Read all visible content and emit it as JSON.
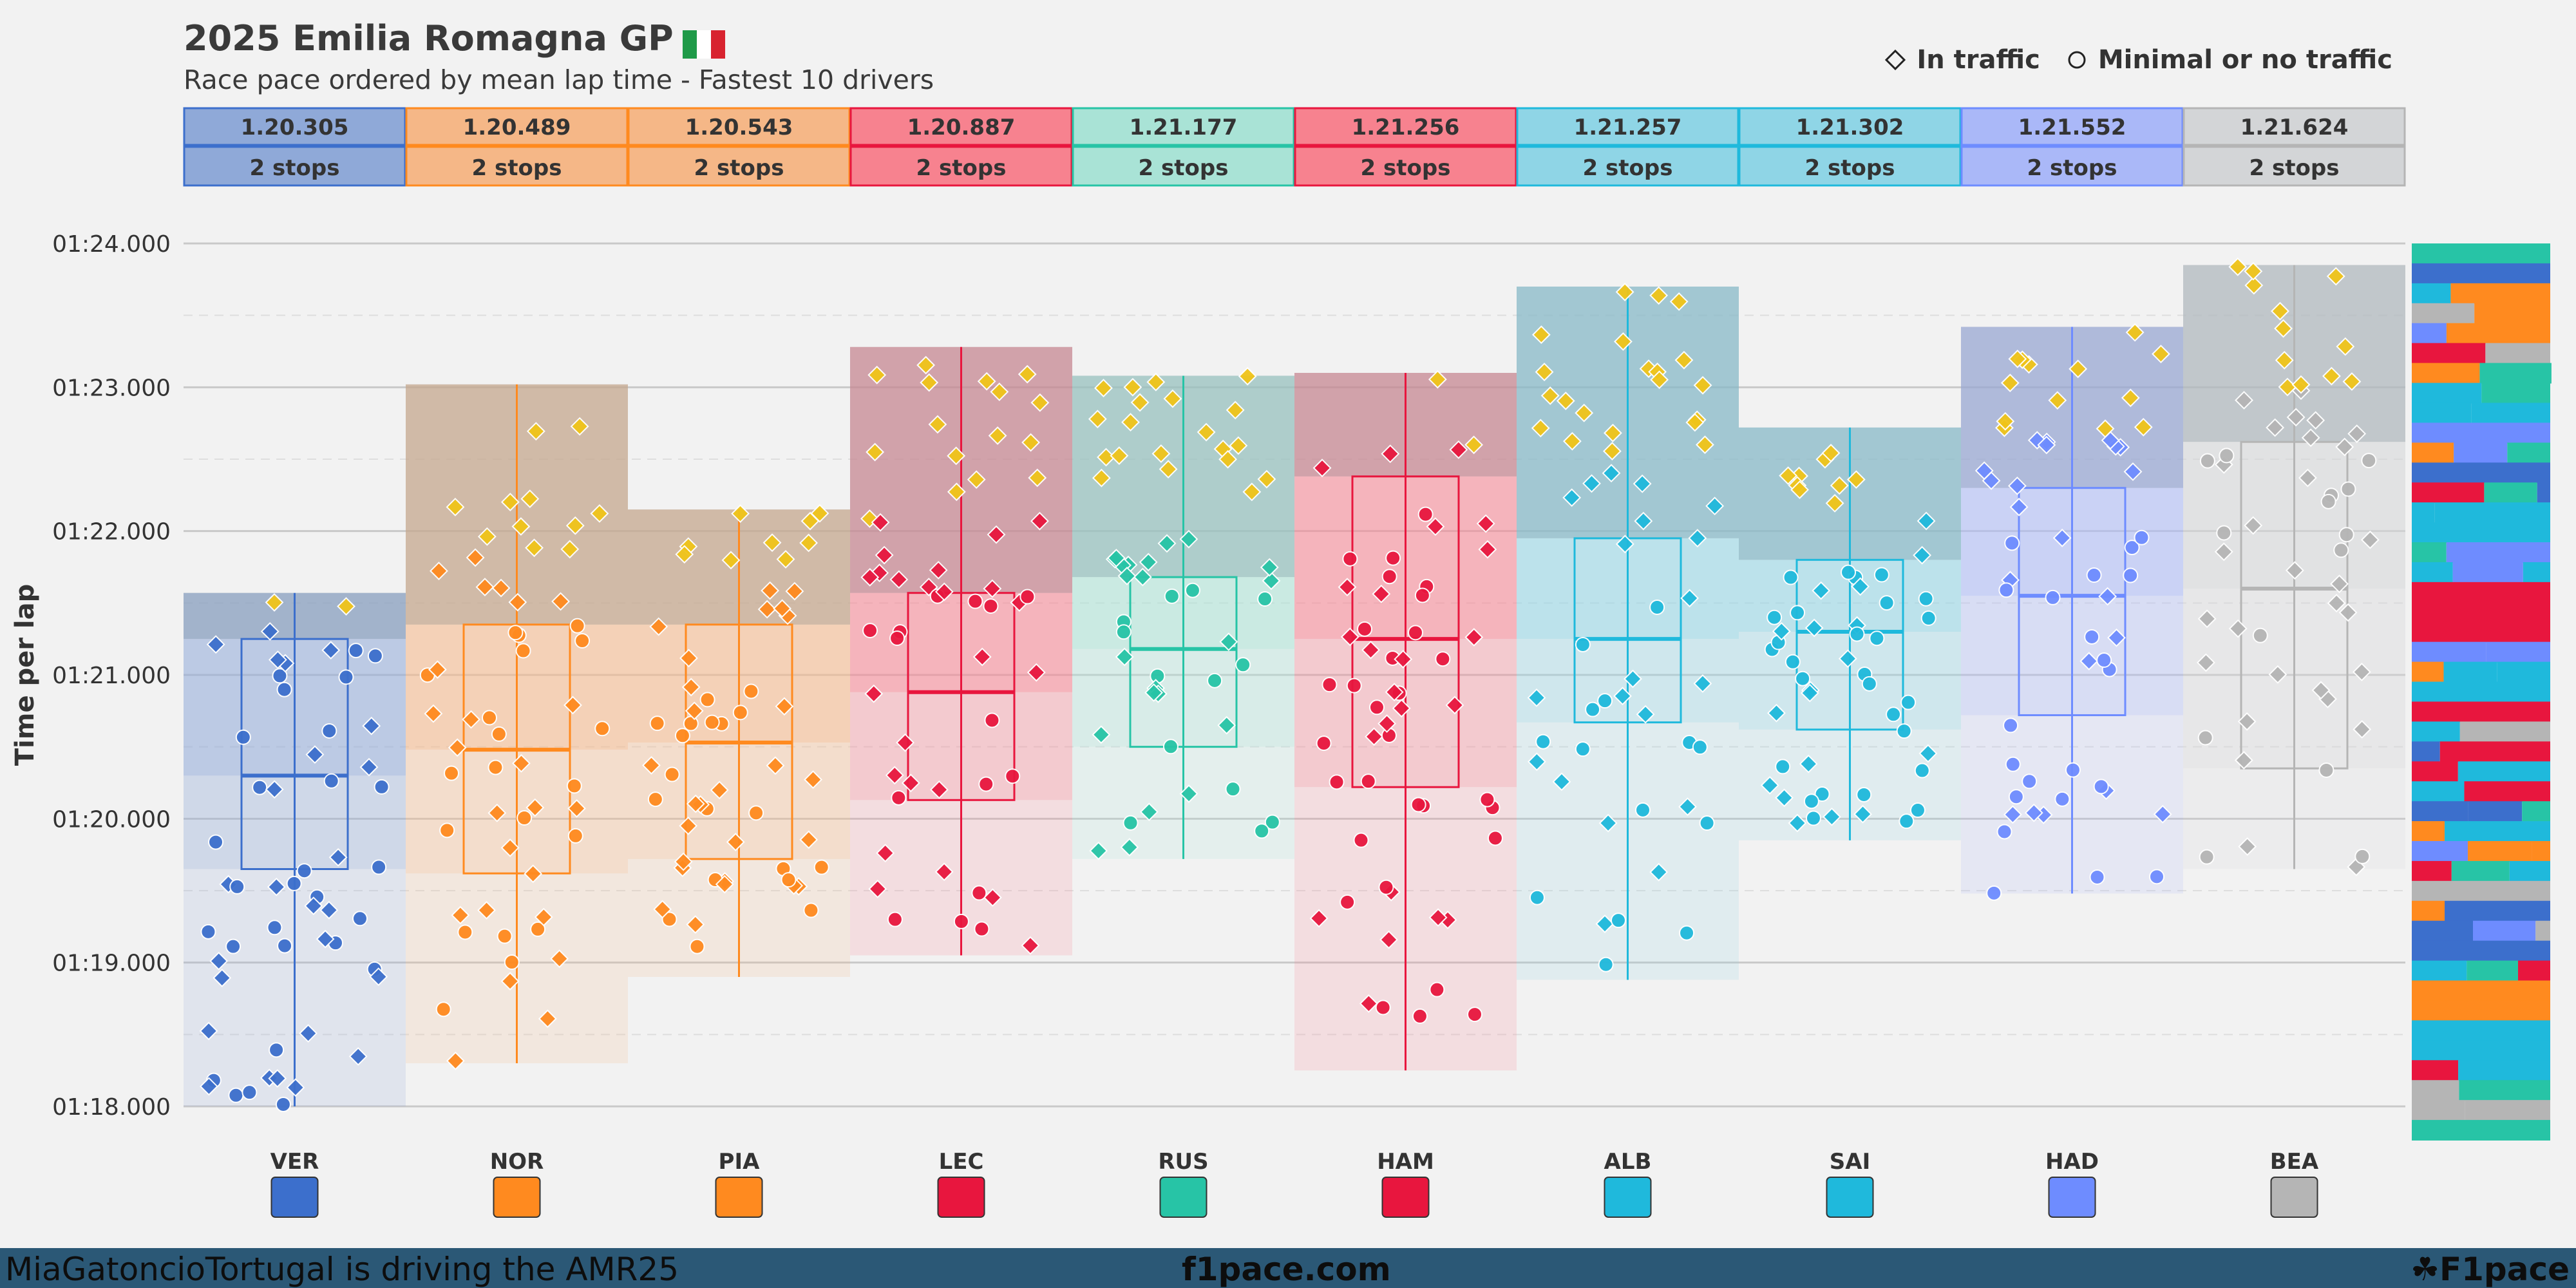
{
  "header": {
    "title": "2025 Emilia Romagna GP",
    "subtitle": "Race pace ordered by mean lap time - Fastest 10 drivers"
  },
  "legend": {
    "traffic": "In traffic",
    "no_traffic": "Minimal or no traffic"
  },
  "footer": {
    "left": "MiaGatoncioTortugal is driving the AMR25",
    "center": "f1pace.com",
    "right": "F1pace"
  },
  "chart_data": {
    "type": "box",
    "title": "2025 Emilia Romagna GP",
    "subtitle": "Race pace ordered by mean lap time - Fastest 10 drivers",
    "ylabel": "Time per lap",
    "ylim": [
      78.0,
      84.0
    ],
    "yticks": [
      "01:18.000",
      "01:19.000",
      "01:20.000",
      "01:21.000",
      "01:22.000",
      "01:23.000",
      "01:24.000"
    ],
    "drivers": [
      {
        "code": "VER",
        "mean": "1.20.305",
        "stops": "2 stops",
        "color": "#3c6fcc",
        "fill": "#8fa9d8",
        "q1": 79.65,
        "median": 80.3,
        "q3": 81.25,
        "min": 78.0,
        "max": 81.57
      },
      {
        "code": "NOR",
        "mean": "1.20.489",
        "stops": "2 stops",
        "color": "#ff8a1f",
        "fill": "#f5b787",
        "q1": 79.62,
        "median": 80.48,
        "q3": 81.35,
        "min": 78.3,
        "max": 83.02
      },
      {
        "code": "PIA",
        "mean": "1.20.543",
        "stops": "2 stops",
        "color": "#ff8a1f",
        "fill": "#f5b787",
        "q1": 79.72,
        "median": 80.53,
        "q3": 81.35,
        "min": 78.9,
        "max": 82.15
      },
      {
        "code": "LEC",
        "mean": "1.20.887",
        "stops": "2 stops",
        "color": "#e8163e",
        "fill": "#f7828f",
        "q1": 80.13,
        "median": 80.88,
        "q3": 81.57,
        "min": 79.05,
        "max": 83.28
      },
      {
        "code": "RUS",
        "mean": "1.21.177",
        "stops": "2 stops",
        "color": "#27c4a6",
        "fill": "#a9e3d6",
        "q1": 80.5,
        "median": 81.18,
        "q3": 81.68,
        "min": 79.72,
        "max": 83.08
      },
      {
        "code": "HAM",
        "mean": "1.21.256",
        "stops": "2 stops",
        "color": "#e8163e",
        "fill": "#f7828f",
        "q1": 80.22,
        "median": 81.25,
        "q3": 82.38,
        "min": 78.25,
        "max": 83.1
      },
      {
        "code": "ALB",
        "mean": "1.21.257",
        "stops": "2 stops",
        "color": "#1fb9dc",
        "fill": "#8fd5e6",
        "q1": 80.67,
        "median": 81.25,
        "q3": 81.95,
        "min": 78.88,
        "max": 83.7
      },
      {
        "code": "SAI",
        "mean": "1.21.302",
        "stops": "2 stops",
        "color": "#1fb9dc",
        "fill": "#8fd5e6",
        "q1": 80.62,
        "median": 81.3,
        "q3": 81.8,
        "min": 79.85,
        "max": 82.72
      },
      {
        "code": "HAD",
        "mean": "1.21.552",
        "stops": "2 stops",
        "color": "#6e8cff",
        "fill": "#aab8f8",
        "q1": 80.72,
        "median": 81.55,
        "q3": 82.3,
        "min": 79.48,
        "max": 83.42
      },
      {
        "code": "BEA",
        "mean": "1.21.624",
        "stops": "2 stops",
        "color": "#b5b5b5",
        "fill": "#d3d5d7",
        "q1": 80.35,
        "median": 81.6,
        "q3": 82.62,
        "min": 79.65,
        "max": 83.85
      }
    ]
  }
}
